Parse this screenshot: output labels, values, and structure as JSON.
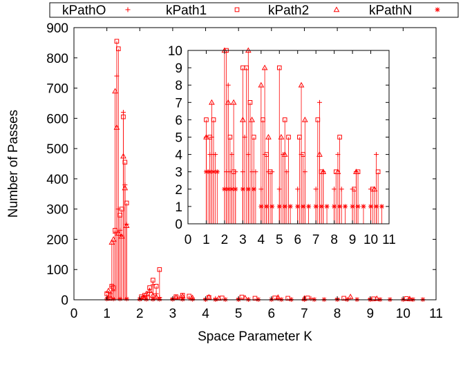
{
  "chart_data": [
    {
      "id": "main",
      "type": "scatter",
      "title": "",
      "xlabel": "Space Parameter K",
      "ylabel": "Number of Passes",
      "xlim": [
        0,
        11
      ],
      "ylim": [
        0,
        900
      ],
      "xticks": [
        "0",
        "1",
        "2",
        "3",
        "4",
        "5",
        "6",
        "7",
        "8",
        "9",
        "10",
        "11"
      ],
      "yticks": [
        "0",
        "100",
        "200",
        "300",
        "400",
        "500",
        "600",
        "700",
        "800",
        "900"
      ],
      "legend_position": "top",
      "color": "#ff0000",
      "series": [
        {
          "name": "kPathO",
          "marker": "plus",
          "points": [
            [
              1.05,
              8
            ],
            [
              1.1,
              20
            ],
            [
              1.15,
              45
            ],
            [
              1.2,
              30
            ],
            [
              1.25,
              220
            ],
            [
              1.3,
              740
            ],
            [
              1.35,
              300
            ],
            [
              1.4,
              230
            ],
            [
              1.45,
              210
            ],
            [
              1.5,
              620
            ],
            [
              1.55,
              380
            ],
            [
              1.6,
              250
            ],
            [
              2.05,
              5
            ],
            [
              2.1,
              10
            ],
            [
              2.2,
              12
            ],
            [
              2.3,
              25
            ],
            [
              2.4,
              50
            ],
            [
              2.5,
              20
            ],
            [
              2.6,
              8
            ],
            [
              3.0,
              4
            ],
            [
              3.2,
              6
            ],
            [
              3.5,
              5
            ],
            [
              4.0,
              3
            ],
            [
              4.3,
              4
            ],
            [
              5.0,
              3
            ],
            [
              6.2,
              4
            ],
            [
              7.2,
              4
            ],
            [
              8.0,
              3
            ],
            [
              9.0,
              3
            ],
            [
              10.2,
              3
            ]
          ]
        },
        {
          "name": "kPath1",
          "marker": "square",
          "points": [
            [
              1.0,
              20
            ],
            [
              1.08,
              5
            ],
            [
              1.15,
              45
            ],
            [
              1.2,
              40
            ],
            [
              1.25,
              230
            ],
            [
              1.3,
              855
            ],
            [
              1.35,
              830
            ],
            [
              1.4,
              280
            ],
            [
              1.45,
              300
            ],
            [
              1.5,
              605
            ],
            [
              1.55,
              455
            ],
            [
              1.6,
              320
            ],
            [
              2.05,
              10
            ],
            [
              2.15,
              15
            ],
            [
              2.3,
              40
            ],
            [
              2.4,
              65
            ],
            [
              2.5,
              45
            ],
            [
              2.6,
              100
            ],
            [
              3.1,
              10
            ],
            [
              3.3,
              15
            ],
            [
              3.5,
              12
            ],
            [
              4.1,
              8
            ],
            [
              4.5,
              6
            ],
            [
              5.1,
              9
            ],
            [
              5.5,
              5
            ],
            [
              6.1,
              6
            ],
            [
              6.5,
              5
            ],
            [
              7.1,
              6
            ],
            [
              8.2,
              5
            ],
            [
              9.1,
              3
            ],
            [
              10.1,
              4
            ]
          ]
        },
        {
          "name": "kPath2",
          "marker": "triangle",
          "points": [
            [
              1.05,
              30
            ],
            [
              1.15,
              190
            ],
            [
              1.2,
              200
            ],
            [
              1.25,
              690
            ],
            [
              1.3,
              570
            ],
            [
              1.35,
              220
            ],
            [
              1.45,
              210
            ],
            [
              1.5,
              475
            ],
            [
              1.55,
              370
            ],
            [
              1.6,
              245
            ],
            [
              2.1,
              8
            ],
            [
              2.2,
              20
            ],
            [
              2.3,
              30
            ],
            [
              2.4,
              15
            ],
            [
              2.5,
              10
            ],
            [
              3.1,
              8
            ],
            [
              3.3,
              12
            ],
            [
              3.6,
              7
            ],
            [
              4.1,
              9
            ],
            [
              4.4,
              5
            ],
            [
              5.2,
              6
            ],
            [
              6.2,
              8
            ],
            [
              7.0,
              5
            ],
            [
              8.4,
              10
            ],
            [
              9.2,
              4
            ],
            [
              10.2,
              3
            ]
          ]
        },
        {
          "name": "kPathN",
          "marker": "star",
          "points": [
            [
              1.0,
              3
            ],
            [
              1.2,
              3
            ],
            [
              1.4,
              3
            ],
            [
              1.6,
              3
            ],
            [
              2.0,
              2
            ],
            [
              2.2,
              2
            ],
            [
              2.4,
              2
            ],
            [
              2.6,
              2
            ],
            [
              3.0,
              2
            ],
            [
              3.3,
              2
            ],
            [
              3.6,
              2
            ],
            [
              4.0,
              1
            ],
            [
              4.3,
              1
            ],
            [
              4.6,
              1
            ],
            [
              5.0,
              1
            ],
            [
              5.3,
              1
            ],
            [
              5.6,
              1
            ],
            [
              6.0,
              1
            ],
            [
              6.3,
              1
            ],
            [
              6.6,
              1
            ],
            [
              7.0,
              1
            ],
            [
              7.3,
              1
            ],
            [
              7.6,
              1
            ],
            [
              8.0,
              1
            ],
            [
              8.3,
              1
            ],
            [
              8.6,
              1
            ],
            [
              9.0,
              1
            ],
            [
              9.3,
              1
            ],
            [
              9.6,
              1
            ],
            [
              10.0,
              1
            ],
            [
              10.3,
              1
            ],
            [
              10.6,
              1
            ]
          ]
        }
      ]
    },
    {
      "id": "inset",
      "type": "scatter",
      "xlim": [
        0,
        11
      ],
      "ylim": [
        0,
        10
      ],
      "xticks": [
        "0",
        "1",
        "2",
        "3",
        "4",
        "5",
        "6",
        "7",
        "8",
        "9",
        "10",
        "11"
      ],
      "yticks": [
        "0",
        "1",
        "2",
        "3",
        "4",
        "5",
        "6",
        "7",
        "8",
        "9",
        "10"
      ],
      "color": "#ff0000",
      "series": [
        {
          "name": "kPathO",
          "marker": "plus",
          "points": [
            [
              1.0,
              5
            ],
            [
              1.1,
              3
            ],
            [
              1.2,
              4
            ],
            [
              1.3,
              5
            ],
            [
              1.4,
              4
            ],
            [
              1.5,
              4
            ],
            [
              2.0,
              2
            ],
            [
              2.1,
              3
            ],
            [
              2.2,
              8
            ],
            [
              2.3,
              3
            ],
            [
              2.4,
              4
            ],
            [
              2.6,
              3
            ],
            [
              3.0,
              3
            ],
            [
              3.1,
              5
            ],
            [
              3.3,
              4
            ],
            [
              3.5,
              3
            ],
            [
              3.7,
              3
            ],
            [
              4.0,
              2
            ],
            [
              4.2,
              4
            ],
            [
              4.4,
              3
            ],
            [
              4.6,
              3
            ],
            [
              5.0,
              2
            ],
            [
              5.2,
              4
            ],
            [
              5.4,
              3
            ],
            [
              6.0,
              2
            ],
            [
              6.2,
              4
            ],
            [
              6.4,
              3
            ],
            [
              7.0,
              2
            ],
            [
              7.2,
              7
            ],
            [
              7.4,
              3
            ],
            [
              8.0,
              2
            ],
            [
              8.2,
              4
            ],
            [
              8.4,
              2
            ],
            [
              9.0,
              2
            ],
            [
              9.2,
              3
            ],
            [
              10.0,
              2
            ],
            [
              10.3,
              4
            ]
          ]
        },
        {
          "name": "kPath1",
          "marker": "square",
          "points": [
            [
              1.0,
              6
            ],
            [
              1.2,
              5
            ],
            [
              1.4,
              6
            ],
            [
              2.1,
              10
            ],
            [
              2.3,
              5
            ],
            [
              2.5,
              3
            ],
            [
              3.0,
              9
            ],
            [
              3.2,
              9
            ],
            [
              3.4,
              7
            ],
            [
              3.6,
              5
            ],
            [
              4.1,
              6
            ],
            [
              4.3,
              4
            ],
            [
              4.5,
              3
            ],
            [
              5.0,
              9
            ],
            [
              5.3,
              6
            ],
            [
              5.5,
              5
            ],
            [
              6.1,
              5
            ],
            [
              6.3,
              4
            ],
            [
              7.1,
              6
            ],
            [
              7.3,
              3
            ],
            [
              8.1,
              3
            ],
            [
              8.3,
              5
            ],
            [
              9.1,
              2
            ],
            [
              9.3,
              3
            ],
            [
              10.1,
              2
            ],
            [
              10.4,
              3
            ]
          ]
        },
        {
          "name": "kPath2",
          "marker": "triangle",
          "points": [
            [
              1.0,
              5
            ],
            [
              1.3,
              7
            ],
            [
              2.0,
              10
            ],
            [
              2.2,
              7
            ],
            [
              2.5,
              7
            ],
            [
              3.0,
              6
            ],
            [
              3.3,
              10
            ],
            [
              3.5,
              6
            ],
            [
              4.0,
              8
            ],
            [
              4.2,
              9
            ],
            [
              4.4,
              5
            ],
            [
              5.1,
              5
            ],
            [
              5.3,
              4
            ],
            [
              6.2,
              8
            ],
            [
              6.4,
              6
            ],
            [
              7.2,
              4
            ],
            [
              7.4,
              3
            ],
            [
              8.2,
              3
            ],
            [
              9.2,
              3
            ],
            [
              10.2,
              2
            ]
          ]
        },
        {
          "name": "kPathN",
          "marker": "star",
          "points": [
            [
              1.0,
              3
            ],
            [
              1.2,
              3
            ],
            [
              1.4,
              3
            ],
            [
              1.6,
              3
            ],
            [
              2.0,
              2
            ],
            [
              2.2,
              2
            ],
            [
              2.4,
              2
            ],
            [
              2.6,
              2
            ],
            [
              3.0,
              2
            ],
            [
              3.3,
              2
            ],
            [
              3.6,
              2
            ],
            [
              4.0,
              1
            ],
            [
              4.3,
              1
            ],
            [
              4.6,
              1
            ],
            [
              5.0,
              1
            ],
            [
              5.3,
              1
            ],
            [
              5.6,
              1
            ],
            [
              6.0,
              1
            ],
            [
              6.3,
              1
            ],
            [
              6.6,
              1
            ],
            [
              7.0,
              1
            ],
            [
              7.3,
              1
            ],
            [
              7.6,
              1
            ],
            [
              8.0,
              1
            ],
            [
              8.3,
              1
            ],
            [
              8.6,
              1
            ],
            [
              9.0,
              1
            ],
            [
              9.3,
              1
            ],
            [
              9.6,
              1
            ],
            [
              10.0,
              1
            ],
            [
              10.3,
              1
            ],
            [
              10.6,
              1
            ]
          ]
        }
      ]
    }
  ]
}
